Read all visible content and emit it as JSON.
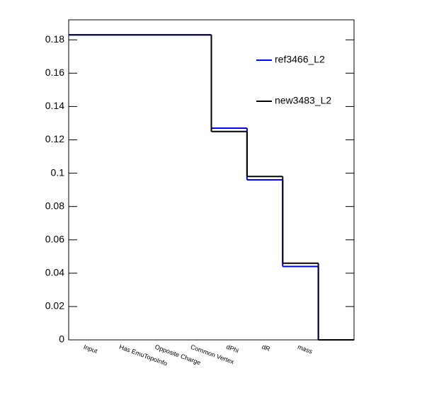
{
  "chart_data": {
    "type": "step",
    "categories": [
      "Input",
      "Has EmuTopoInfo",
      "Opposite Charge",
      "Common Vertex",
      "dPhi",
      "dR",
      "mass",
      null
    ],
    "series": [
      {
        "name": "ref3466_L2",
        "color": "#0000ff",
        "values": [
          0.183,
          0.183,
          0.183,
          0.183,
          0.127,
          0.096,
          0.044,
          0
        ]
      },
      {
        "name": "new3483_L2",
        "color": "#000000",
        "values": [
          0.183,
          0.183,
          0.183,
          0.183,
          0.125,
          0.098,
          0.046,
          0
        ]
      }
    ],
    "ylim": [
      0,
      0.192
    ],
    "yticks": [
      0,
      0.02,
      0.04,
      0.06,
      0.08,
      0.1,
      0.12,
      0.14,
      0.16,
      0.18
    ],
    "legend": "upper right"
  }
}
